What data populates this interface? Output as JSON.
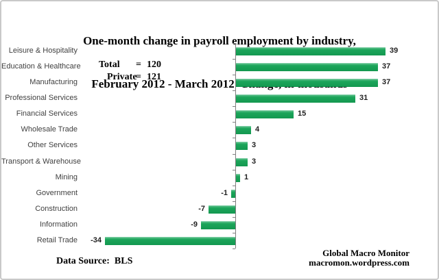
{
  "title": {
    "line1": "One-month change in payroll employment by industry,",
    "line2": "February 2012 - March 2012  Change, in thousands"
  },
  "summary": {
    "rows": [
      {
        "label": "Total",
        "eq": "=",
        "value": "120"
      },
      {
        "label": "Private",
        "eq": "=",
        "value": "121"
      }
    ]
  },
  "footer": {
    "source": "Data Source:  BLS",
    "brand_line1": "Global Macro Monitor",
    "brand_line2": "macromon.wordpress.com"
  },
  "colors": {
    "bar_green": "#1CA55A",
    "axis_gray": "#7F7F7F",
    "category_text": "#3F3F3F",
    "value_text": "#1F1F1F",
    "frame_border": "#C9C9C9"
  },
  "chart_data": {
    "type": "bar",
    "orientation": "horizontal",
    "title": "One-month change in payroll employment by industry, February 2012 - March 2012  Change, in thousands",
    "categories": [
      "Leisure & Hospitality",
      "Education & Healthcare",
      "Manufacturing",
      "Professional Services",
      "Financial Services",
      "Wholesale Trade",
      "Other Services",
      "Transport & Warehouse",
      "Mining",
      "Government",
      "Construction",
      "Information",
      "Retail Trade"
    ],
    "values": [
      39,
      37,
      37,
      31,
      15,
      4,
      3,
      3,
      1,
      -1,
      -7,
      -9,
      -34
    ],
    "units": "thousands",
    "annotations": [
      "Total = 120",
      "Private = 121"
    ],
    "data_source": "BLS",
    "value_labels_shown": true,
    "value_axis_visible": false,
    "zero_line": true,
    "grid": false,
    "legend": "none",
    "bar_color": "#1CA55A"
  }
}
